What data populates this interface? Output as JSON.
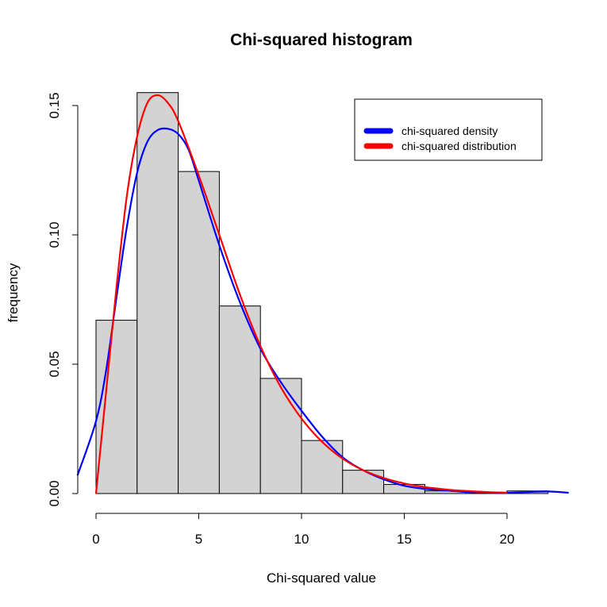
{
  "chart_data": {
    "type": "histogram",
    "title": "Chi-squared histogram",
    "xlabel": "Chi-squared value",
    "ylabel": "frequency",
    "xlim": [
      -0.8,
      23
    ],
    "ylim": [
      0,
      0.16
    ],
    "x_ticks": [
      0,
      5,
      10,
      15,
      20
    ],
    "y_ticks": [
      0.0,
      0.05,
      0.1,
      0.15
    ],
    "x_tick_labels": [
      "0",
      "5",
      "10",
      "15",
      "20"
    ],
    "y_tick_labels": [
      "0.00",
      "0.05",
      "0.10",
      "0.15"
    ],
    "bins": [
      {
        "from": 0,
        "to": 2,
        "value": 0.067
      },
      {
        "from": 2,
        "to": 4,
        "value": 0.155
      },
      {
        "from": 4,
        "to": 6,
        "value": 0.1245
      },
      {
        "from": 6,
        "to": 8,
        "value": 0.0725
      },
      {
        "from": 8,
        "to": 10,
        "value": 0.0445
      },
      {
        "from": 10,
        "to": 12,
        "value": 0.0205
      },
      {
        "from": 12,
        "to": 14,
        "value": 0.009
      },
      {
        "from": 14,
        "to": 16,
        "value": 0.0035
      },
      {
        "from": 16,
        "to": 18,
        "value": 0.001
      },
      {
        "from": 18,
        "to": 20,
        "value": 0.0005
      },
      {
        "from": 20,
        "to": 22,
        "value": 0.001
      }
    ],
    "bar_color": "#d3d3d3",
    "series": [
      {
        "name": "chi-squared density",
        "color": "#0000ff",
        "x": [
          -0.9,
          0,
          0.5,
          1,
          1.5,
          2,
          2.5,
          3,
          3.5,
          4,
          4.5,
          5,
          6,
          7,
          8,
          9,
          10,
          11,
          12,
          13,
          14,
          15,
          16,
          17,
          18,
          19,
          20,
          21,
          22,
          23
        ],
        "y": [
          0.007,
          0.028,
          0.048,
          0.076,
          0.103,
          0.124,
          0.136,
          0.1405,
          0.141,
          0.139,
          0.133,
          0.121,
          0.096,
          0.074,
          0.056,
          0.043,
          0.032,
          0.022,
          0.014,
          0.009,
          0.0055,
          0.003,
          0.0018,
          0.0012,
          0.0006,
          0.0003,
          0.0003,
          0.0006,
          0.0008,
          0.0003
        ]
      },
      {
        "name": "chi-squared distribution",
        "color": "#ff0000",
        "x": [
          0,
          0.5,
          1,
          1.5,
          2,
          2.5,
          3,
          3.5,
          4,
          5,
          6,
          7,
          8,
          9,
          10,
          11,
          12,
          13,
          14,
          15,
          16,
          17,
          18,
          19,
          20
        ],
        "y": [
          0,
          0.04,
          0.08,
          0.115,
          0.138,
          0.151,
          0.154,
          0.151,
          0.144,
          0.123,
          0.1,
          0.077,
          0.057,
          0.041,
          0.029,
          0.02,
          0.0135,
          0.009,
          0.006,
          0.0039,
          0.0025,
          0.0016,
          0.001,
          0.0006,
          0.0003
        ]
      }
    ],
    "legend": {
      "placement": "top-right",
      "entries": [
        "chi-squared density",
        "chi-squared distribution"
      ]
    }
  }
}
